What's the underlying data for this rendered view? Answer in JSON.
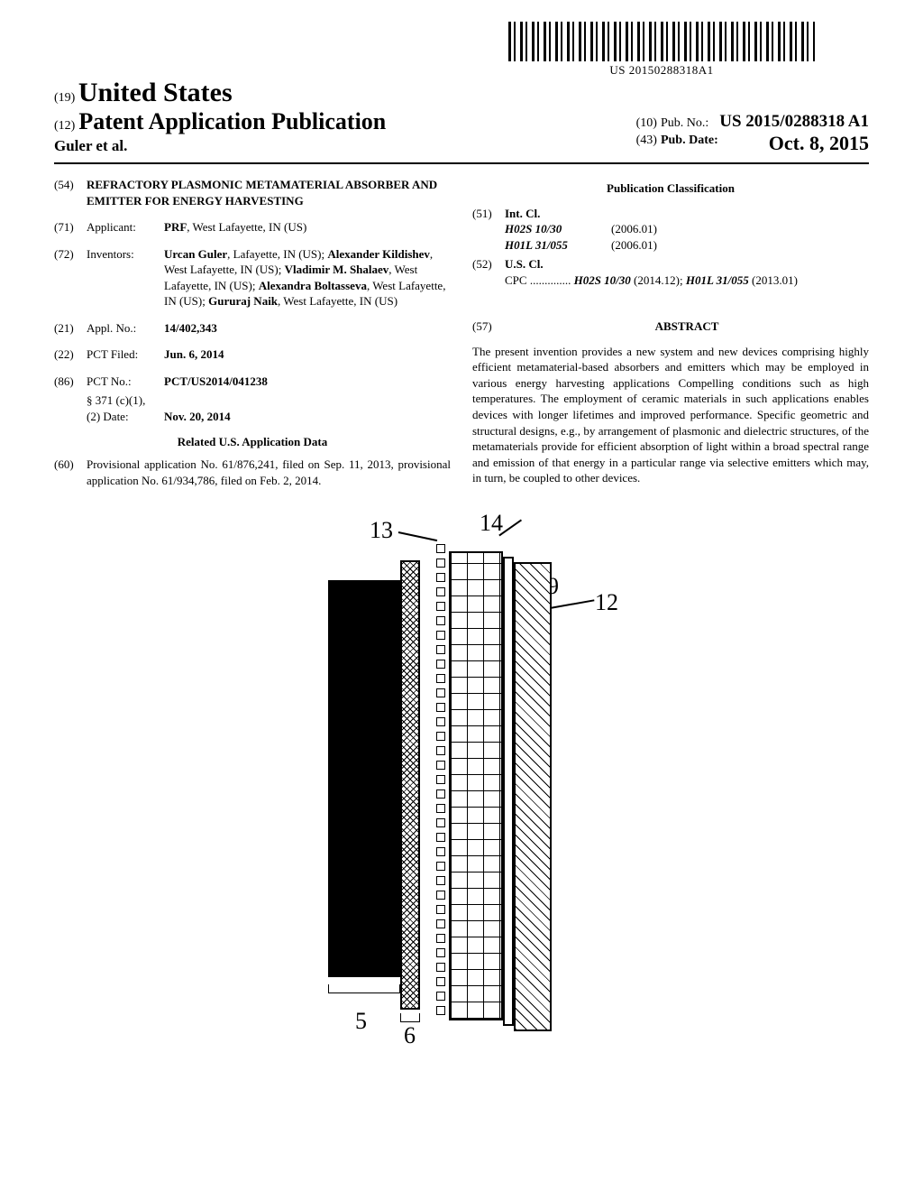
{
  "barcode_number": "US 20150288318A1",
  "header": {
    "country_prefix": "(19)",
    "country": "United States",
    "pub_prefix": "(12)",
    "pub_title": "Patent Application Publication",
    "authors": "Guler et al.",
    "pub_no_prefix": "(10)",
    "pub_no_label": "Pub. No.:",
    "pub_no": "US 2015/0288318 A1",
    "pub_date_prefix": "(43)",
    "pub_date_label": "Pub. Date:",
    "pub_date": "Oct. 8, 2015"
  },
  "left": {
    "f54": {
      "num": "(54)",
      "title": "REFRACTORY PLASMONIC METAMATERIAL ABSORBER AND EMITTER FOR ENERGY HARVESTING"
    },
    "f71": {
      "num": "(71)",
      "label": "Applicant:",
      "body_bold": "PRF",
      "body_rest": ", West Lafayette, IN (US)"
    },
    "f72": {
      "num": "(72)",
      "label": "Inventors:",
      "body": "Urcan Guler, Lafayette, IN (US); Alexander Kildishev, West Lafayette, IN (US); Vladimir M. Shalaev, West Lafayette, IN (US); Alexandra Boltasseva, West Lafayette, IN (US); Gururaj Naik, West Lafayette, IN (US)",
      "names_bold": [
        "Urcan Guler",
        "Alexander Kildishev",
        "Vladimir M. Shalaev",
        "Alexandra Boltasseva",
        "Gururaj Naik"
      ]
    },
    "f21": {
      "num": "(21)",
      "label": "Appl. No.:",
      "value": "14/402,343"
    },
    "f22": {
      "num": "(22)",
      "label": "PCT Filed:",
      "value": "Jun. 6, 2014"
    },
    "f86": {
      "num": "(86)",
      "label": "PCT No.:",
      "value": "PCT/US2014/041238",
      "sub1_label": "§ 371 (c)(1),",
      "sub2_label": "(2) Date:",
      "sub2_value": "Nov. 20, 2014"
    },
    "related_title": "Related U.S. Application Data",
    "f60": {
      "num": "(60)",
      "body": "Provisional application No. 61/876,241, filed on Sep. 11, 2013, provisional application No. 61/934,786, filed on Feb. 2, 2014."
    }
  },
  "right": {
    "classification_title": "Publication Classification",
    "f51": {
      "num": "(51)",
      "label": "Int. Cl.",
      "rows": [
        {
          "code": "H02S 10/30",
          "ver": "(2006.01)"
        },
        {
          "code": "H01L 31/055",
          "ver": "(2006.01)"
        }
      ]
    },
    "f52": {
      "num": "(52)",
      "label": "U.S. Cl.",
      "cpc_prefix": "CPC ..............",
      "cpc_parts": [
        {
          "code": "H02S 10/30",
          "ver": "(2014.12); "
        },
        {
          "code": "H01L 31/055",
          "ver": "(2013.01)"
        }
      ]
    },
    "abstract_num": "(57)",
    "abstract_label": "ABSTRACT",
    "abstract_body": "The present invention provides a new system and new devices comprising highly efficient metamaterial-based absorbers and emitters which may be employed in various energy harvesting applications Compelling conditions such as high temperatures. The employment of ceramic materials in such applications enables devices with longer lifetimes and improved performance. Specific geometric and structural designs, e.g., by arrangement of plasmonic and dielectric structures, of the metamaterials provide for efficient absorption of light within a broad spectral range and emission of that energy in a particular range via selective emitters which may, in turn, be coupled to other devices."
  },
  "diagram": {
    "labels": {
      "l5": "5",
      "l6": "6",
      "l9": "9",
      "l12": "12",
      "l13": "13",
      "l14": "14"
    },
    "colors": {
      "line": "#000000",
      "bg": "#ffffff"
    }
  }
}
